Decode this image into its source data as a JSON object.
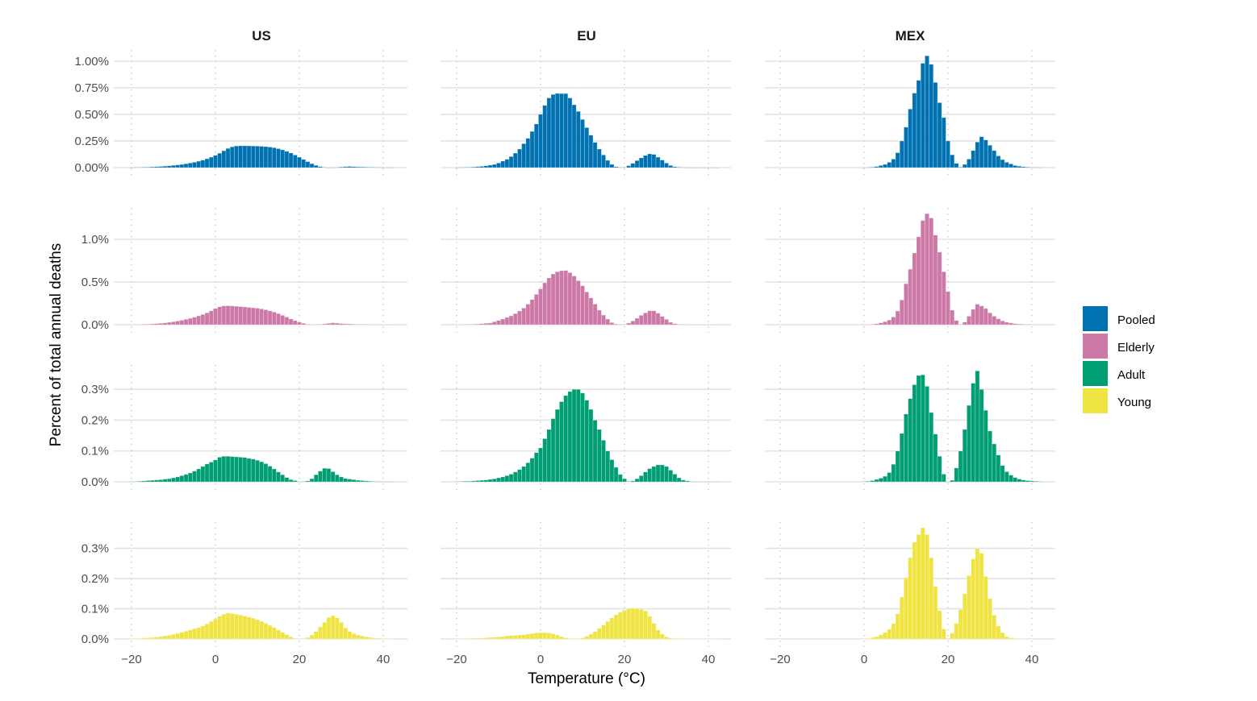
{
  "chart_data": {
    "type": "bar",
    "subtype": "faceted histogram",
    "xlabel": "Temperature (°C)",
    "ylabel": "Percent of total annual deaths",
    "xlim": [
      -22,
      44
    ],
    "x_ticks": [
      -20,
      0,
      20,
      40
    ],
    "x_tick_labels": [
      "−20",
      "0",
      "20",
      "40"
    ],
    "columns": [
      "US",
      "EU",
      "MEX"
    ],
    "rows": [
      {
        "key": "pooled",
        "name": "Pooled",
        "color": "#0072B2",
        "ylim": [
          0,
          1.1
        ],
        "y_ticks": [
          0,
          0.25,
          0.5,
          0.75,
          1.0
        ],
        "y_tick_labels": [
          "0.00%",
          "0.25%",
          "0.50%",
          "0.75%",
          "1.00%"
        ]
      },
      {
        "key": "elderly",
        "name": "Elderly",
        "color": "#CC79A7",
        "ylim": [
          0,
          1.37
        ],
        "y_ticks": [
          0,
          0.5,
          1.0
        ],
        "y_tick_labels": [
          "0.0%",
          "0.5%",
          "1.0%"
        ]
      },
      {
        "key": "adult",
        "name": "Adult",
        "color": "#009E73",
        "ylim": [
          0,
          0.38
        ],
        "y_ticks": [
          0,
          0.1,
          0.2,
          0.3
        ],
        "y_tick_labels": [
          "0.0%",
          "0.1%",
          "0.2%",
          "0.3%"
        ]
      },
      {
        "key": "young",
        "name": "Young",
        "color": "#F0E442",
        "ylim": [
          0,
          0.39
        ],
        "y_ticks": [
          0,
          0.1,
          0.2,
          0.3
        ],
        "y_tick_labels": [
          "0.0%",
          "0.1%",
          "0.2%",
          "0.3%"
        ]
      }
    ],
    "bin_width": 1,
    "x_start": -20,
    "series": {
      "US": {
        "pooled": [
          0.001,
          0.002,
          0.003,
          0.004,
          0.005,
          0.007,
          0.009,
          0.011,
          0.014,
          0.017,
          0.021,
          0.025,
          0.03,
          0.036,
          0.043,
          0.05,
          0.06,
          0.07,
          0.083,
          0.098,
          0.115,
          0.135,
          0.158,
          0.18,
          0.195,
          0.203,
          0.205,
          0.205,
          0.204,
          0.203,
          0.202,
          0.2,
          0.197,
          0.193,
          0.187,
          0.178,
          0.167,
          0.153,
          0.137,
          0.118,
          0.098,
          0.077,
          0.056,
          0.037,
          0.021,
          0.009,
          0.003,
          0.001,
          0.0005,
          0.002,
          0.006,
          0.009,
          0.011,
          0.009,
          0.007,
          0.006,
          0.005,
          0.004,
          0.003,
          0.002,
          0.001,
          0.001,
          0.0005
        ],
        "elderly": [
          0.001,
          0.002,
          0.003,
          0.005,
          0.007,
          0.01,
          0.013,
          0.017,
          0.022,
          0.028,
          0.035,
          0.043,
          0.052,
          0.063,
          0.075,
          0.088,
          0.103,
          0.12,
          0.14,
          0.163,
          0.19,
          0.21,
          0.22,
          0.222,
          0.22,
          0.216,
          0.212,
          0.208,
          0.203,
          0.198,
          0.193,
          0.185,
          0.175,
          0.163,
          0.148,
          0.13,
          0.11,
          0.09,
          0.068,
          0.048,
          0.03,
          0.016,
          0.006,
          0.002,
          0.001,
          0.004,
          0.01,
          0.016,
          0.022,
          0.018,
          0.014,
          0.011,
          0.009,
          0.007,
          0.005,
          0.004,
          0.003,
          0.002,
          0.001,
          0.001,
          0.0005,
          0.0005,
          0.0005
        ],
        "adult": [
          0.001,
          0.001,
          0.002,
          0.003,
          0.004,
          0.005,
          0.006,
          0.007,
          0.009,
          0.01,
          0.013,
          0.016,
          0.02,
          0.024,
          0.029,
          0.035,
          0.042,
          0.05,
          0.058,
          0.064,
          0.071,
          0.08,
          0.083,
          0.083,
          0.082,
          0.081,
          0.08,
          0.079,
          0.076,
          0.074,
          0.07,
          0.065,
          0.059,
          0.051,
          0.042,
          0.032,
          0.023,
          0.014,
          0.007,
          0.004,
          0.0005,
          0.001,
          0.003,
          0.01,
          0.023,
          0.035,
          0.044,
          0.043,
          0.033,
          0.023,
          0.016,
          0.011,
          0.009,
          0.007,
          0.005,
          0.004,
          0.003,
          0.002,
          0.001,
          0.001,
          0.0005,
          0.0005,
          0.0005
        ],
        "young": [
          0.001,
          0.001,
          0.002,
          0.003,
          0.004,
          0.005,
          0.006,
          0.008,
          0.01,
          0.012,
          0.015,
          0.018,
          0.022,
          0.026,
          0.03,
          0.034,
          0.038,
          0.043,
          0.05,
          0.058,
          0.066,
          0.075,
          0.082,
          0.086,
          0.084,
          0.082,
          0.079,
          0.076,
          0.073,
          0.069,
          0.064,
          0.058,
          0.052,
          0.045,
          0.038,
          0.03,
          0.022,
          0.014,
          0.007,
          0.002,
          0.0005,
          0.001,
          0.005,
          0.013,
          0.025,
          0.04,
          0.055,
          0.071,
          0.077,
          0.07,
          0.055,
          0.037,
          0.025,
          0.018,
          0.013,
          0.01,
          0.007,
          0.005,
          0.003,
          0.002,
          0.001,
          0.0005,
          0.0005
        ]
      },
      "EU": {
        "pooled": [
          0.001,
          0.002,
          0.003,
          0.004,
          0.006,
          0.009,
          0.012,
          0.017,
          0.023,
          0.03,
          0.043,
          0.061,
          0.078,
          0.104,
          0.136,
          0.174,
          0.225,
          0.275,
          0.34,
          0.41,
          0.5,
          0.585,
          0.654,
          0.687,
          0.697,
          0.695,
          0.695,
          0.654,
          0.59,
          0.528,
          0.452,
          0.376,
          0.305,
          0.237,
          0.174,
          0.119,
          0.068,
          0.03,
          0.008,
          0.002,
          0.003,
          0.018,
          0.04,
          0.066,
          0.091,
          0.114,
          0.129,
          0.124,
          0.098,
          0.071,
          0.043,
          0.02,
          0.008,
          0.004,
          0.002,
          0.001,
          0.0005,
          0.0005,
          0.0005,
          0.0005,
          0.0005,
          0.0005,
          0.0005
        ],
        "elderly": [
          0.001,
          0.002,
          0.003,
          0.004,
          0.006,
          0.008,
          0.012,
          0.016,
          0.02,
          0.035,
          0.05,
          0.066,
          0.085,
          0.104,
          0.13,
          0.16,
          0.195,
          0.24,
          0.295,
          0.355,
          0.42,
          0.49,
          0.547,
          0.594,
          0.62,
          0.632,
          0.635,
          0.61,
          0.57,
          0.515,
          0.456,
          0.384,
          0.314,
          0.242,
          0.17,
          0.113,
          0.066,
          0.025,
          0.008,
          0.001,
          0.003,
          0.019,
          0.044,
          0.075,
          0.11,
          0.139,
          0.163,
          0.163,
          0.135,
          0.097,
          0.063,
          0.028,
          0.012,
          0.005,
          0.002,
          0.001,
          0.0005,
          0.0005,
          0.0005,
          0.0005,
          0.0005,
          0.0005,
          0.0005
        ],
        "adult": [
          0.001,
          0.001,
          0.002,
          0.002,
          0.003,
          0.004,
          0.005,
          0.006,
          0.008,
          0.01,
          0.013,
          0.016,
          0.02,
          0.025,
          0.032,
          0.04,
          0.05,
          0.062,
          0.077,
          0.095,
          0.11,
          0.14,
          0.17,
          0.205,
          0.235,
          0.26,
          0.28,
          0.293,
          0.3,
          0.3,
          0.288,
          0.265,
          0.235,
          0.2,
          0.17,
          0.135,
          0.1,
          0.072,
          0.047,
          0.024,
          0.01,
          0.001,
          0.003,
          0.01,
          0.02,
          0.032,
          0.043,
          0.05,
          0.055,
          0.055,
          0.05,
          0.038,
          0.025,
          0.013,
          0.006,
          0.003,
          0.001,
          0.0005,
          0.0005,
          0.0005,
          0.0005,
          0.0005,
          0.0005
        ],
        "young": [
          0.001,
          0.001,
          0.001,
          0.002,
          0.002,
          0.003,
          0.003,
          0.004,
          0.005,
          0.006,
          0.007,
          0.008,
          0.01,
          0.011,
          0.012,
          0.013,
          0.014,
          0.016,
          0.018,
          0.02,
          0.021,
          0.021,
          0.02,
          0.017,
          0.013,
          0.008,
          0.004,
          0.001,
          0.0005,
          0.001,
          0.004,
          0.009,
          0.016,
          0.025,
          0.035,
          0.046,
          0.058,
          0.07,
          0.08,
          0.088,
          0.095,
          0.1,
          0.102,
          0.101,
          0.098,
          0.093,
          0.075,
          0.052,
          0.03,
          0.016,
          0.007,
          0.003,
          0.001,
          0.0005,
          0.0005,
          0.0005,
          0.0005,
          0.0005,
          0.0005,
          0.0005,
          0.0005,
          0.0005,
          0.0005
        ]
      },
      "MEX": {
        "pooled": [
          0,
          0,
          0,
          0,
          0,
          0,
          0,
          0,
          0,
          0,
          0,
          0,
          0,
          0,
          0,
          0,
          0,
          0,
          0,
          0,
          0.001,
          0.002,
          0.005,
          0.01,
          0.02,
          0.03,
          0.05,
          0.08,
          0.14,
          0.25,
          0.38,
          0.55,
          0.7,
          0.82,
          0.98,
          1.05,
          0.97,
          0.8,
          0.61,
          0.47,
          0.25,
          0.12,
          0.04,
          0.005,
          0.03,
          0.08,
          0.16,
          0.24,
          0.29,
          0.26,
          0.21,
          0.16,
          0.11,
          0.075,
          0.05,
          0.035,
          0.02,
          0.013,
          0.008,
          0.005,
          0.003,
          0.002,
          0.001
        ],
        "elderly": [
          0,
          0,
          0,
          0,
          0,
          0,
          0,
          0,
          0,
          0,
          0,
          0,
          0,
          0,
          0,
          0,
          0,
          0,
          0,
          0,
          0.001,
          0.002,
          0.006,
          0.012,
          0.022,
          0.035,
          0.055,
          0.09,
          0.16,
          0.29,
          0.48,
          0.65,
          0.84,
          1.03,
          1.22,
          1.3,
          1.25,
          1.05,
          0.85,
          0.62,
          0.39,
          0.17,
          0.05,
          0.005,
          0.03,
          0.1,
          0.18,
          0.24,
          0.22,
          0.19,
          0.14,
          0.1,
          0.07,
          0.045,
          0.03,
          0.02,
          0.012,
          0.008,
          0.005,
          0.003,
          0.002,
          0.001,
          0.001
        ],
        "adult": [
          0,
          0,
          0,
          0,
          0,
          0,
          0,
          0,
          0,
          0,
          0,
          0,
          0,
          0,
          0,
          0,
          0,
          0,
          0,
          0,
          0.001,
          0.002,
          0.004,
          0.008,
          0.012,
          0.018,
          0.03,
          0.057,
          0.1,
          0.157,
          0.22,
          0.27,
          0.315,
          0.345,
          0.347,
          0.31,
          0.225,
          0.155,
          0.083,
          0.025,
          0.0005,
          0.005,
          0.045,
          0.1,
          0.17,
          0.248,
          0.32,
          0.36,
          0.3,
          0.232,
          0.165,
          0.123,
          0.087,
          0.053,
          0.033,
          0.022,
          0.014,
          0.009,
          0.006,
          0.004,
          0.003,
          0.002,
          0.001
        ],
        "young": [
          0,
          0,
          0,
          0,
          0,
          0,
          0,
          0,
          0,
          0,
          0,
          0,
          0,
          0,
          0,
          0,
          0,
          0,
          0,
          0,
          0.001,
          0.002,
          0.005,
          0.008,
          0.014,
          0.022,
          0.032,
          0.051,
          0.083,
          0.139,
          0.203,
          0.269,
          0.321,
          0.346,
          0.368,
          0.346,
          0.269,
          0.174,
          0.094,
          0.033,
          0.002,
          0.019,
          0.052,
          0.097,
          0.15,
          0.21,
          0.265,
          0.3,
          0.284,
          0.207,
          0.134,
          0.079,
          0.043,
          0.021,
          0.008,
          0.004,
          0.002,
          0.001,
          0.0005,
          0,
          0,
          0,
          0
        ]
      }
    },
    "legend": {
      "position": "right",
      "entries": [
        "Pooled",
        "Elderly",
        "Adult",
        "Young"
      ]
    }
  }
}
